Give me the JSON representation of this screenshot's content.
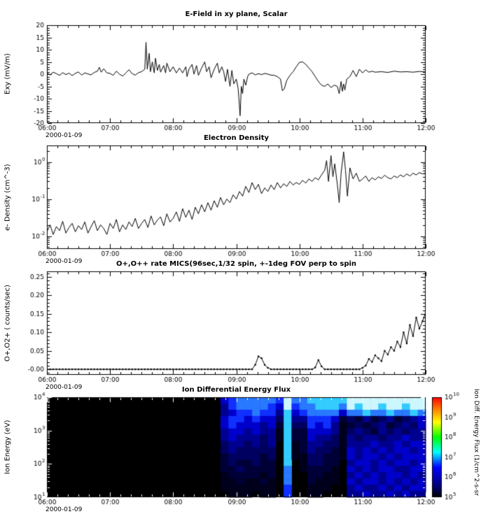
{
  "page": {
    "date_label": "2000-01-09"
  },
  "x_axis": {
    "range": [
      6,
      12
    ],
    "tick_values": [
      6,
      7,
      8,
      9,
      10,
      11,
      12
    ],
    "tick_labels": [
      "06:00",
      "07:00",
      "08:00",
      "09:00",
      "10:00",
      "11:00",
      "12:00"
    ],
    "minor_per_hour": 6
  },
  "chart_data": [
    {
      "type": "line",
      "title": "E-Field in xy plane, Scalar",
      "ylabel": "Exy (mV/m)",
      "ylim": [
        -20,
        20
      ],
      "y_tick_values": [
        -20,
        -15,
        -10,
        -5,
        0,
        5,
        10,
        15,
        20
      ],
      "y_tick_labels": [
        "-20",
        "-15",
        "-10",
        "-5",
        "0",
        "5",
        "10",
        "15",
        "20"
      ],
      "y_minor_step": 1,
      "line_color": "#000000",
      "points": [
        [
          6.0,
          0.5
        ],
        [
          6.05,
          -0.3
        ],
        [
          6.1,
          0.8
        ],
        [
          6.15,
          0.2
        ],
        [
          6.2,
          -0.5
        ],
        [
          6.25,
          0.6
        ],
        [
          6.3,
          -0.2
        ],
        [
          6.35,
          0.4
        ],
        [
          6.4,
          -0.6
        ],
        [
          6.45,
          0.3
        ],
        [
          6.5,
          0.9
        ],
        [
          6.55,
          -0.4
        ],
        [
          6.6,
          0.5
        ],
        [
          6.65,
          0.1
        ],
        [
          6.7,
          -0.3
        ],
        [
          6.75,
          0.7
        ],
        [
          6.8,
          1.2
        ],
        [
          6.83,
          2.8
        ],
        [
          6.86,
          0.8
        ],
        [
          6.9,
          2.2
        ],
        [
          6.95,
          0.5
        ],
        [
          7.0,
          0.3
        ],
        [
          7.05,
          -0.5
        ],
        [
          7.1,
          1.2
        ],
        [
          7.15,
          0.0
        ],
        [
          7.2,
          -0.8
        ],
        [
          7.25,
          0.5
        ],
        [
          7.3,
          1.8
        ],
        [
          7.35,
          0.2
        ],
        [
          7.4,
          -0.4
        ],
        [
          7.45,
          0.6
        ],
        [
          7.5,
          1.0
        ],
        [
          7.55,
          2.0
        ],
        [
          7.57,
          13.0
        ],
        [
          7.59,
          2.0
        ],
        [
          7.62,
          8.5
        ],
        [
          7.64,
          1.0
        ],
        [
          7.67,
          5.0
        ],
        [
          7.7,
          0.5
        ],
        [
          7.72,
          6.5
        ],
        [
          7.75,
          1.5
        ],
        [
          7.78,
          4.0
        ],
        [
          7.8,
          0.8
        ],
        [
          7.85,
          3.5
        ],
        [
          7.88,
          0.5
        ],
        [
          7.9,
          4.5
        ],
        [
          7.95,
          1.0
        ],
        [
          8.0,
          3.0
        ],
        [
          8.05,
          0.5
        ],
        [
          8.1,
          2.5
        ],
        [
          8.15,
          0.5
        ],
        [
          8.2,
          3.0
        ],
        [
          8.22,
          -1.0
        ],
        [
          8.25,
          2.0
        ],
        [
          8.3,
          4.0
        ],
        [
          8.33,
          0.0
        ],
        [
          8.37,
          3.5
        ],
        [
          8.4,
          -0.5
        ],
        [
          8.45,
          2.5
        ],
        [
          8.5,
          5.0
        ],
        [
          8.53,
          1.0
        ],
        [
          8.57,
          3.0
        ],
        [
          8.6,
          -1.5
        ],
        [
          8.65,
          2.0
        ],
        [
          8.7,
          4.5
        ],
        [
          8.73,
          0.5
        ],
        [
          8.77,
          3.0
        ],
        [
          8.8,
          1.0
        ],
        [
          8.83,
          -3.0
        ],
        [
          8.86,
          2.0
        ],
        [
          8.9,
          -5.0
        ],
        [
          8.93,
          1.5
        ],
        [
          8.96,
          -4.0
        ],
        [
          9.0,
          -2.0
        ],
        [
          9.03,
          -6.0
        ],
        [
          9.06,
          -17.0
        ],
        [
          9.08,
          -5.0
        ],
        [
          9.1,
          -8.0
        ],
        [
          9.12,
          -2.0
        ],
        [
          9.15,
          -4.5
        ],
        [
          9.18,
          -1.0
        ],
        [
          9.2,
          0.0
        ],
        [
          9.25,
          0.5
        ],
        [
          9.3,
          -0.3
        ],
        [
          9.35,
          0.2
        ],
        [
          9.4,
          -0.2
        ],
        [
          9.45,
          0.3
        ],
        [
          9.5,
          0.0
        ],
        [
          9.55,
          -0.4
        ],
        [
          9.6,
          -0.5
        ],
        [
          9.65,
          -1.0
        ],
        [
          9.7,
          -2.0
        ],
        [
          9.73,
          -6.8
        ],
        [
          9.76,
          -6.0
        ],
        [
          9.8,
          -2.5
        ],
        [
          9.85,
          -0.5
        ],
        [
          9.9,
          1.0
        ],
        [
          9.95,
          3.0
        ],
        [
          10.0,
          4.8
        ],
        [
          10.05,
          5.0
        ],
        [
          10.1,
          4.0
        ],
        [
          10.15,
          2.5
        ],
        [
          10.2,
          1.0
        ],
        [
          10.25,
          -1.0
        ],
        [
          10.3,
          -3.0
        ],
        [
          10.35,
          -4.5
        ],
        [
          10.4,
          -5.0
        ],
        [
          10.45,
          -4.0
        ],
        [
          10.5,
          -5.5
        ],
        [
          10.55,
          -4.5
        ],
        [
          10.6,
          -5.0
        ],
        [
          10.63,
          -8.0
        ],
        [
          10.66,
          -3.0
        ],
        [
          10.68,
          -7.0
        ],
        [
          10.7,
          -4.0
        ],
        [
          10.72,
          -6.5
        ],
        [
          10.75,
          -2.0
        ],
        [
          10.8,
          -1.0
        ],
        [
          10.85,
          1.5
        ],
        [
          10.9,
          -1.0
        ],
        [
          10.95,
          2.0
        ],
        [
          11.0,
          0.5
        ],
        [
          11.05,
          1.8
        ],
        [
          11.1,
          0.8
        ],
        [
          11.15,
          1.2
        ],
        [
          11.2,
          0.8
        ],
        [
          11.3,
          1.0
        ],
        [
          11.4,
          0.7
        ],
        [
          11.5,
          1.2
        ],
        [
          11.6,
          0.9
        ],
        [
          11.7,
          1.0
        ],
        [
          11.8,
          0.8
        ],
        [
          11.9,
          1.1
        ],
        [
          12.0,
          0.9
        ]
      ]
    },
    {
      "type": "line",
      "title": "Electron Density",
      "ylabel": "e- Density (cm^-3)",
      "y_scale": "log",
      "ylim_log": [
        -2.35,
        0.45
      ],
      "y_tick_exponents": [
        -2,
        -1,
        0
      ],
      "line_color": "#000000",
      "points": [
        [
          6.0,
          0.013
        ],
        [
          6.05,
          0.02
        ],
        [
          6.1,
          0.011
        ],
        [
          6.15,
          0.018
        ],
        [
          6.2,
          0.014
        ],
        [
          6.25,
          0.025
        ],
        [
          6.3,
          0.012
        ],
        [
          6.35,
          0.017
        ],
        [
          6.4,
          0.022
        ],
        [
          6.45,
          0.013
        ],
        [
          6.5,
          0.019
        ],
        [
          6.55,
          0.015
        ],
        [
          6.6,
          0.024
        ],
        [
          6.65,
          0.012
        ],
        [
          6.7,
          0.018
        ],
        [
          6.75,
          0.026
        ],
        [
          6.8,
          0.014
        ],
        [
          6.85,
          0.02
        ],
        [
          6.9,
          0.016
        ],
        [
          6.95,
          0.011
        ],
        [
          7.0,
          0.022
        ],
        [
          7.05,
          0.016
        ],
        [
          7.1,
          0.028
        ],
        [
          7.15,
          0.013
        ],
        [
          7.2,
          0.02
        ],
        [
          7.25,
          0.015
        ],
        [
          7.3,
          0.024
        ],
        [
          7.35,
          0.018
        ],
        [
          7.4,
          0.03
        ],
        [
          7.45,
          0.016
        ],
        [
          7.5,
          0.022
        ],
        [
          7.55,
          0.028
        ],
        [
          7.6,
          0.017
        ],
        [
          7.65,
          0.035
        ],
        [
          7.7,
          0.02
        ],
        [
          7.75,
          0.027
        ],
        [
          7.8,
          0.033
        ],
        [
          7.85,
          0.019
        ],
        [
          7.9,
          0.04
        ],
        [
          7.95,
          0.024
        ],
        [
          8.0,
          0.03
        ],
        [
          8.05,
          0.045
        ],
        [
          8.1,
          0.025
        ],
        [
          8.15,
          0.055
        ],
        [
          8.2,
          0.032
        ],
        [
          8.25,
          0.05
        ],
        [
          8.3,
          0.028
        ],
        [
          8.35,
          0.06
        ],
        [
          8.4,
          0.04
        ],
        [
          8.45,
          0.07
        ],
        [
          8.5,
          0.045
        ],
        [
          8.55,
          0.08
        ],
        [
          8.6,
          0.05
        ],
        [
          8.65,
          0.09
        ],
        [
          8.7,
          0.06
        ],
        [
          8.75,
          0.11
        ],
        [
          8.8,
          0.07
        ],
        [
          8.85,
          0.1
        ],
        [
          8.9,
          0.08
        ],
        [
          8.95,
          0.13
        ],
        [
          9.0,
          0.1
        ],
        [
          9.05,
          0.16
        ],
        [
          9.1,
          0.12
        ],
        [
          9.15,
          0.22
        ],
        [
          9.2,
          0.15
        ],
        [
          9.25,
          0.28
        ],
        [
          9.3,
          0.18
        ],
        [
          9.35,
          0.25
        ],
        [
          9.4,
          0.14
        ],
        [
          9.45,
          0.2
        ],
        [
          9.5,
          0.16
        ],
        [
          9.55,
          0.24
        ],
        [
          9.6,
          0.18
        ],
        [
          9.65,
          0.28
        ],
        [
          9.7,
          0.2
        ],
        [
          9.75,
          0.26
        ],
        [
          9.8,
          0.22
        ],
        [
          9.85,
          0.3
        ],
        [
          9.9,
          0.24
        ],
        [
          9.95,
          0.28
        ],
        [
          10.0,
          0.25
        ],
        [
          10.05,
          0.32
        ],
        [
          10.1,
          0.27
        ],
        [
          10.15,
          0.35
        ],
        [
          10.2,
          0.3
        ],
        [
          10.25,
          0.38
        ],
        [
          10.3,
          0.33
        ],
        [
          10.35,
          0.45
        ],
        [
          10.4,
          0.6
        ],
        [
          10.43,
          1.1
        ],
        [
          10.46,
          0.3
        ],
        [
          10.5,
          1.5
        ],
        [
          10.53,
          0.4
        ],
        [
          10.56,
          0.9
        ],
        [
          10.6,
          0.25
        ],
        [
          10.63,
          0.08
        ],
        [
          10.66,
          0.5
        ],
        [
          10.7,
          1.9
        ],
        [
          10.73,
          0.6
        ],
        [
          10.76,
          0.12
        ],
        [
          10.8,
          0.7
        ],
        [
          10.85,
          0.35
        ],
        [
          10.9,
          0.5
        ],
        [
          10.95,
          0.3
        ],
        [
          11.0,
          0.35
        ],
        [
          11.05,
          0.42
        ],
        [
          11.1,
          0.3
        ],
        [
          11.15,
          0.38
        ],
        [
          11.2,
          0.33
        ],
        [
          11.25,
          0.4
        ],
        [
          11.3,
          0.36
        ],
        [
          11.35,
          0.44
        ],
        [
          11.4,
          0.38
        ],
        [
          11.45,
          0.35
        ],
        [
          11.5,
          0.42
        ],
        [
          11.55,
          0.38
        ],
        [
          11.6,
          0.45
        ],
        [
          11.65,
          0.4
        ],
        [
          11.7,
          0.48
        ],
        [
          11.75,
          0.42
        ],
        [
          11.8,
          0.5
        ],
        [
          11.85,
          0.45
        ],
        [
          11.9,
          0.52
        ],
        [
          11.95,
          0.48
        ],
        [
          12.0,
          0.5
        ]
      ]
    },
    {
      "type": "line-markers",
      "title": "O+,O++ rate MICS(96sec,1/32 spin, +-1deg FOV perp to spin",
      "ylabel": "O+,O2+ ( counts/sec)",
      "ylim": [
        -0.015,
        0.265
      ],
      "y_tick_values": [
        0,
        0.05,
        0.1,
        0.15,
        0.2,
        0.25
      ],
      "y_tick_labels": [
        "-0.00",
        "0.05",
        "0.10",
        "0.15",
        "0.20",
        "0.25"
      ],
      "y_minor_step": 0.01,
      "line_color": "#000000",
      "x_start": 6,
      "x_step": 0.05,
      "values": [
        0,
        0,
        0,
        0,
        0,
        0,
        0,
        0,
        0,
        0,
        0,
        0,
        0,
        0,
        0,
        0,
        0,
        0,
        0,
        0,
        0,
        0,
        0,
        0,
        0,
        0,
        0,
        0,
        0,
        0,
        0,
        0,
        0,
        0,
        0,
        0,
        0,
        0,
        0,
        0,
        0,
        0,
        0,
        0,
        0,
        0,
        0,
        0,
        0,
        0,
        0,
        0,
        0,
        0,
        0,
        0,
        0,
        0,
        0,
        0,
        0,
        0,
        0,
        0,
        0,
        0,
        0.012,
        0.035,
        0.03,
        0.012,
        0.004,
        0,
        0,
        0,
        0,
        0,
        0,
        0,
        0,
        0,
        0,
        0,
        0,
        0,
        0,
        0.005,
        0.025,
        0.008,
        0,
        0,
        0,
        0,
        0,
        0,
        0,
        0,
        0,
        0,
        0,
        0,
        0.004,
        0.01,
        0.028,
        0.02,
        0.038,
        0.03,
        0.022,
        0.05,
        0.04,
        0.06,
        0.05,
        0.075,
        0.06,
        0.1,
        0.07,
        0.12,
        0.09,
        0.14,
        0.11,
        0.13,
        0.155
      ]
    },
    {
      "type": "heatmap",
      "title": "Ion Differential Energy Flux",
      "ylabel": "Ion Energy (eV)",
      "y_scale": "log",
      "ylim_log": [
        1,
        4
      ],
      "y_tick_exponents": [
        1,
        2,
        3,
        4
      ],
      "intensity_colors": [
        "#000000",
        "#00001c",
        "#000038",
        "#000060",
        "#000090",
        "#0000cc",
        "#1030ff",
        "#2979ff",
        "#33ccff",
        "#ccf7ff"
      ],
      "grid_rows_top_to_bottom": [
        "000000000000000000000056777776977888889999999999",
        "000000000000000000000046777765967788879899899899",
        "000000000000000000000045667664856777757787787787",
        "000000000000000000000056656553844666523242342345",
        "000000000000000000000056555452833656412323423435",
        "000000000000000000000045545441822555413432434344",
        "000000000000000000000045444341822544314344344544",
        "000000000000000000000034434340812443314445445455",
        "000000000000000000000034333330812433215454545545",
        "000000000000000000000023333230811332215455454555",
        "000000000000000000000023223220801332204554545545",
        "000000000000000000000022322220701222105454554455",
        "000000000000000000000012222120700221104545455454",
        "000000000000000000000011211210700211105455454545",
        "000000000000000000000011111110600111004544545455",
        "000000000000000000000001110110600110004454454544"
      ],
      "colorbar": {
        "title": "Ion Diff. Energy Flux (1/cm^2-s-sr",
        "tick_exponents": [
          5,
          6,
          7,
          8,
          9,
          10
        ],
        "stops": [
          [
            0,
            "#000000"
          ],
          [
            0.12,
            "#000080"
          ],
          [
            0.3,
            "#0000ff"
          ],
          [
            0.45,
            "#00ffff"
          ],
          [
            0.6,
            "#00ff00"
          ],
          [
            0.75,
            "#ffff00"
          ],
          [
            0.88,
            "#ff8000"
          ],
          [
            1,
            "#ff0000"
          ]
        ]
      }
    }
  ]
}
